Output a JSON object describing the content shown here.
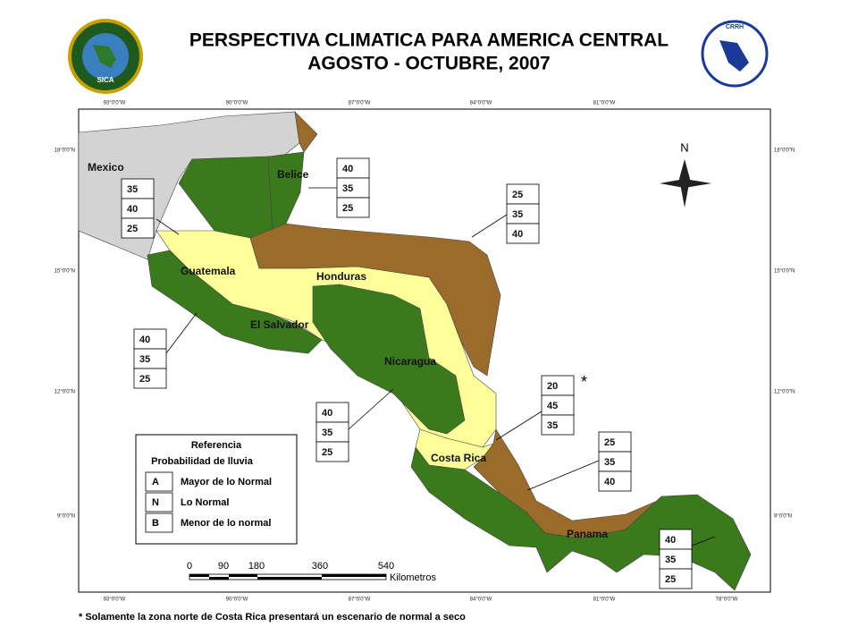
{
  "header": {
    "title": "PERSPECTIVA CLIMATICA PARA AMERICA CENTRAL",
    "subtitle": "AGOSTO - OCTUBRE, 2007"
  },
  "logos": {
    "left": "SICA",
    "right": "CRRH"
  },
  "grid_labels": {
    "top": [
      "93°0'0\"W",
      "90°0'0\"W",
      "87°0'0\"W",
      "84°0'0\"W",
      "81°0'0\"W"
    ],
    "bottom": [
      "93°0'0\"W",
      "90°0'0\"W",
      "87°0'0\"W",
      "84°0'0\"W",
      "81°0'0\"W",
      "78°0'0\"W"
    ],
    "left": [
      "18°0'0\"N",
      "15°0'0\"N",
      "12°0'0\"N",
      "9°0'0\"N"
    ],
    "right": [
      "18°0'0\"N",
      "15°0'0\"N",
      "12°0'0\"N",
      "9°0'0\"N"
    ]
  },
  "countries": [
    "Mexico",
    "Belice",
    "Guatemala",
    "Honduras",
    "El Salvador",
    "Nicaragua",
    "Costa Rica",
    "Panama"
  ],
  "probability_boxes": [
    {
      "values": [
        "35",
        "40",
        "25"
      ]
    },
    {
      "values": [
        "40",
        "35",
        "25"
      ]
    },
    {
      "values": [
        "25",
        "35",
        "40"
      ]
    },
    {
      "values": [
        "40",
        "35",
        "25"
      ]
    },
    {
      "values": [
        "40",
        "35",
        "25"
      ]
    },
    {
      "values": [
        "20",
        "45",
        "35"
      ]
    },
    {
      "values": [
        "25",
        "35",
        "40"
      ]
    },
    {
      "values": [
        "40",
        "35",
        "25"
      ]
    }
  ],
  "asterisk": "*",
  "north": "N",
  "legend": {
    "title": "Referencia",
    "subtitle": "Probabilidad de lluvia",
    "items": [
      {
        "code": "A",
        "label": "Mayor de lo Normal"
      },
      {
        "code": "N",
        "label": "Lo Normal"
      },
      {
        "code": "B",
        "label": "Menor de lo normal"
      }
    ]
  },
  "scale": {
    "ticks": [
      "0",
      "90",
      "180",
      "360",
      "540"
    ],
    "unit": "Kilometros"
  },
  "footnote": "* Solamente la zona norte de Costa Rica presentará un escenario de normal a seco"
}
